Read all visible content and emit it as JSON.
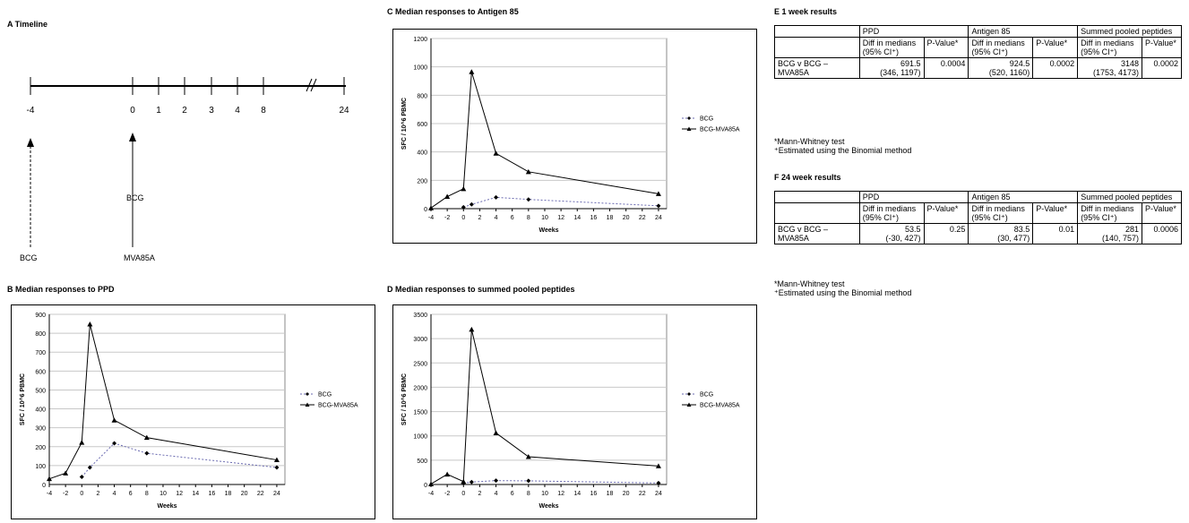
{
  "timeline": {
    "title": "A Timeline",
    "ticks": [
      "-4",
      "0",
      "1",
      "2",
      "3",
      "4",
      "8",
      "24"
    ],
    "labels": {
      "bcg_bottom": "BCG",
      "bcg_mid": "BCG",
      "mva": "MVA85A"
    }
  },
  "chart_data": [
    {
      "id": "B",
      "type": "line",
      "title": "B Median responses to PPD",
      "xlabel": "Weeks",
      "ylabel": "SFC / 10^6 PBMC",
      "xlim": [
        -4,
        25
      ],
      "ylim": [
        0,
        900
      ],
      "yticks": [
        0,
        100,
        200,
        300,
        400,
        500,
        600,
        700,
        800,
        900
      ],
      "xticks": [
        -4,
        -2,
        0,
        2,
        4,
        6,
        8,
        10,
        12,
        14,
        16,
        18,
        20,
        22,
        24
      ],
      "grid": true,
      "legend": "right",
      "series": [
        {
          "name": "BCG",
          "style": "dotted",
          "marker": "diamond",
          "color": "#6a6ab0",
          "x": [
            0,
            1,
            4,
            8,
            24
          ],
          "y": [
            40,
            90,
            218,
            165,
            90
          ]
        },
        {
          "name": "BCG-MVA85A",
          "style": "solid",
          "marker": "triangle",
          "color": "#000000",
          "x": [
            -4,
            -2,
            0,
            1,
            4,
            8,
            24
          ],
          "y": [
            30,
            60,
            222,
            848,
            340,
            248,
            130
          ]
        }
      ]
    },
    {
      "id": "C",
      "type": "line",
      "title": "C Median responses to Antigen 85",
      "xlabel": "Weeks",
      "ylabel": "SFC / 10^6 PBMC",
      "xlim": [
        -4,
        25
      ],
      "ylim": [
        0,
        1200
      ],
      "yticks": [
        0,
        200,
        400,
        600,
        800,
        1000,
        1200
      ],
      "xticks": [
        -4,
        -2,
        0,
        2,
        4,
        6,
        8,
        10,
        12,
        14,
        16,
        18,
        20,
        22,
        24
      ],
      "grid": true,
      "legend": "right",
      "series": [
        {
          "name": "BCG",
          "style": "dotted",
          "marker": "diamond",
          "color": "#6a6ab0",
          "x": [
            0,
            1,
            4,
            8,
            24
          ],
          "y": [
            10,
            30,
            80,
            65,
            20
          ]
        },
        {
          "name": "BCG-MVA85A",
          "style": "solid",
          "marker": "triangle",
          "color": "#000000",
          "x": [
            -4,
            -2,
            0,
            1,
            4,
            8,
            24
          ],
          "y": [
            5,
            85,
            140,
            965,
            390,
            260,
            105
          ]
        }
      ]
    },
    {
      "id": "D",
      "type": "line",
      "title": "D Median responses to summed pooled peptides",
      "xlabel": "Weeks",
      "ylabel": "SFC / 10^6 PBMC",
      "xlim": [
        -4,
        25
      ],
      "ylim": [
        0,
        3500
      ],
      "yticks": [
        0,
        500,
        1000,
        1500,
        2000,
        2500,
        3000,
        3500
      ],
      "xticks": [
        -4,
        -2,
        0,
        2,
        4,
        6,
        8,
        10,
        12,
        14,
        16,
        18,
        20,
        22,
        24
      ],
      "grid": true,
      "legend": "right",
      "series": [
        {
          "name": "BCG",
          "style": "dotted",
          "marker": "diamond",
          "color": "#6a6ab0",
          "x": [
            0,
            1,
            4,
            8,
            24
          ],
          "y": [
            30,
            50,
            80,
            75,
            30
          ]
        },
        {
          "name": "BCG-MVA85A",
          "style": "solid",
          "marker": "triangle",
          "color": "#000000",
          "x": [
            -4,
            -2,
            0,
            1,
            4,
            8,
            24
          ],
          "y": [
            10,
            210,
            60,
            3190,
            1060,
            570,
            380
          ]
        }
      ]
    }
  ],
  "tables": {
    "E": {
      "title": "E  1 week results",
      "groups": [
        "PPD",
        "Antigen 85",
        "Summed pooled peptides"
      ],
      "sub1": "Diff in medians (95% CI⁺)",
      "sub2": "P-Value*",
      "row_label": "BCG v BCG – MVA85A",
      "values": [
        {
          "diff": "691.5",
          "ci": "(346, 1197)",
          "p": "0.0004"
        },
        {
          "diff": "924.5",
          "ci": "(520, 1160)",
          "p": "0.0002"
        },
        {
          "diff": "3148",
          "ci": "(1753, 4173)",
          "p": "0.0002"
        }
      ],
      "notes": [
        "*Mann-Whitney test",
        "⁺Estimated using the Binomial method"
      ]
    },
    "F": {
      "title": "F  24 week results",
      "groups": [
        "PPD",
        "Antigen 85",
        "Summed pooled peptides"
      ],
      "sub1": "Diff in medians (95% CI⁺)",
      "sub2": "P-Value*",
      "row_label": "BCG v BCG – MVA85A",
      "values": [
        {
          "diff": "53.5",
          "ci": "(-30, 427)",
          "p": "0.25"
        },
        {
          "diff": "83.5",
          "ci": "(30, 477)",
          "p": "0.01"
        },
        {
          "diff": "281",
          "ci": "(140, 757)",
          "p": "0.0006"
        }
      ],
      "notes": [
        "*Mann-Whitney test",
        "⁺Estimated using the Binomial method"
      ]
    }
  }
}
